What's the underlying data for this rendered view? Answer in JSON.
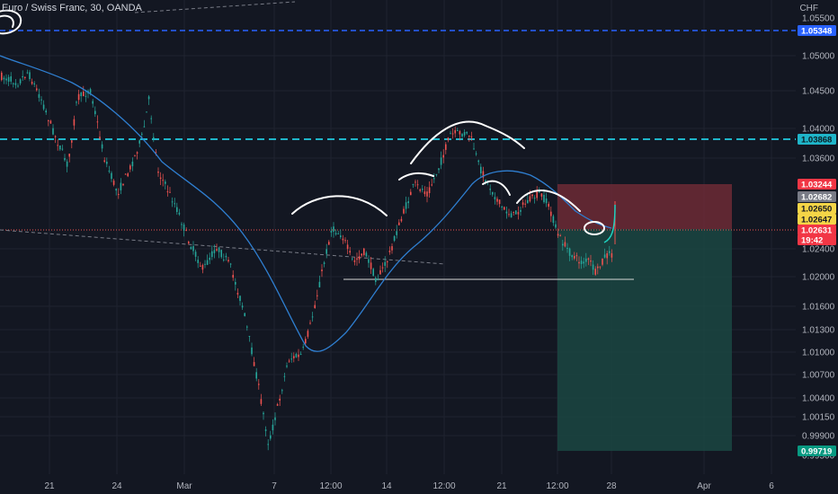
{
  "header": {
    "symbol_title": "Euro / Swiss Franc, 30, OANDA",
    "currency": "CHF"
  },
  "colors": {
    "background": "#131722",
    "axis_text": "#b2b5be",
    "up_candle": "#26a69a",
    "down_candle": "#ef5350",
    "moving_average": "#2f7fd1",
    "blue_dashed_line": "#2962ff",
    "cyan_dashed_line": "#1fb5c9",
    "stop_zone": "#7a2e38",
    "target_zone": "#1b4a45",
    "yellow_badge": "#f5d547",
    "gray_badge": "#787b86",
    "red_badge": "#f23645",
    "teal_badge": "#089981",
    "blue_badge": "#2962ff",
    "drawing_white": "#ffffff"
  },
  "price_axis": {
    "ticks": [
      "1.05500",
      "1.05000",
      "1.04500",
      "1.04000",
      "1.03600",
      "1.02400",
      "1.02000",
      "1.01600",
      "1.01300",
      "1.01000",
      "1.00700",
      "1.00400",
      "1.00150",
      "0.99900",
      "0.99500"
    ]
  },
  "price_badges": [
    {
      "label": "1.05348",
      "kind": "blue"
    },
    {
      "label": "1.03868",
      "kind": "cyan"
    },
    {
      "label": "1.03244",
      "kind": "red"
    },
    {
      "label": "1.02682",
      "kind": "gray"
    },
    {
      "label": "1.02650",
      "kind": "yellow"
    },
    {
      "label": "1.02647",
      "kind": "yellow"
    },
    {
      "label": "1.02631",
      "kind": "red"
    },
    {
      "label": "19:42",
      "kind": "red"
    },
    {
      "label": "0.99719",
      "kind": "teal"
    }
  ],
  "time_axis": {
    "ticks": [
      "21",
      "24",
      "Mar",
      "7",
      "12:00",
      "14",
      "12:00",
      "21",
      "12:00",
      "28",
      "Apr",
      "6"
    ]
  },
  "chart_data": {
    "type": "candlestick",
    "title": "Euro / Swiss Franc, 30, OANDA",
    "currency": "CHF",
    "x_dates": [
      "21",
      "24",
      "Mar",
      "7",
      "12:00",
      "14",
      "12:00",
      "21",
      "12:00",
      "28",
      "Apr",
      "6"
    ],
    "price_path": [
      [
        "21",
        1.047
      ],
      [
        "24",
        1.042
      ],
      [
        "Mar",
        1.02
      ],
      [
        "7",
        0.999
      ],
      [
        "12:00",
        1.024
      ],
      [
        "14",
        1.022
      ],
      [
        "12:00",
        1.0385
      ],
      [
        "21",
        1.029
      ],
      [
        "12:00",
        1.024
      ],
      [
        "28",
        1.0263
      ]
    ],
    "horizontal_levels": [
      {
        "price": 1.05348,
        "style": "dashed",
        "color": "blue"
      },
      {
        "price": 1.03868,
        "style": "dashed",
        "color": "cyan"
      },
      {
        "price": 1.02631,
        "style": "dotted",
        "color": "red"
      },
      {
        "price": 1.0197,
        "style": "solid",
        "color": "white"
      }
    ],
    "position": {
      "type": "short",
      "entry": 1.0265,
      "stop": 1.03244,
      "target": 0.99719
    },
    "last_price": 1.02631,
    "countdown": "19:42"
  }
}
